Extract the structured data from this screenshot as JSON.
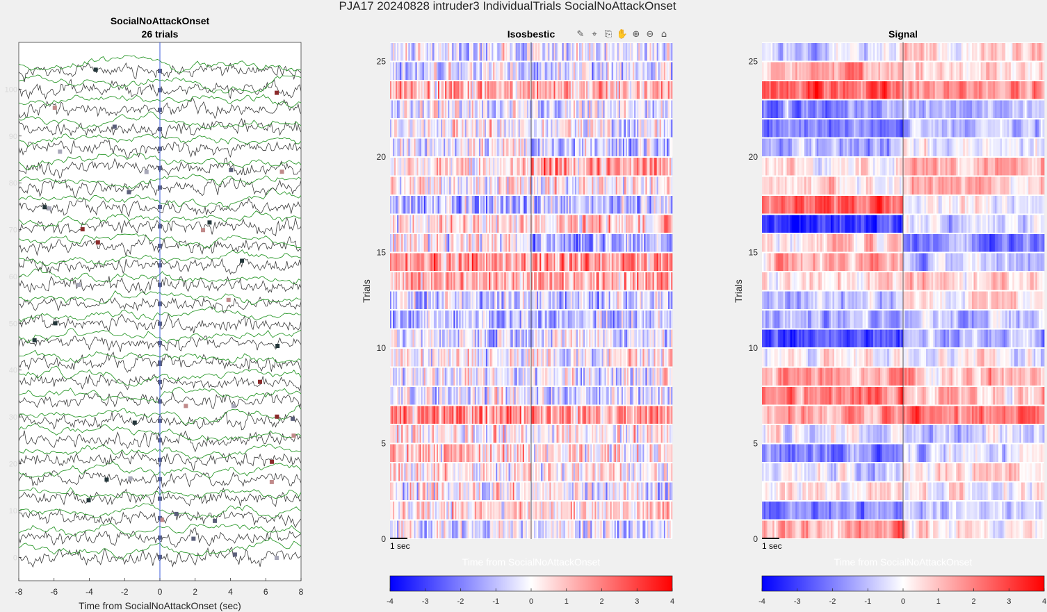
{
  "figure": {
    "suptitle": "PJA17 20240828  intruder3 IndividualTrials SocialNoAttackOnset"
  },
  "toolbar": {
    "icons": [
      "brush-icon",
      "data-tip-icon",
      "export-icon",
      "pan-icon",
      "zoom-in-icon",
      "zoom-out-icon",
      "home-icon"
    ],
    "glyphs": [
      "✎",
      "⌖",
      "⎘",
      "✋",
      "⊕",
      "⊖",
      "⌂"
    ]
  },
  "chart_data": [
    {
      "type": "line",
      "title": "SocialNoAttackOnset",
      "subtitle": "26 trials",
      "xlabel": "Time from SocialNoAttackOnset (sec)",
      "ylabel": "",
      "xlim": [
        -8,
        8
      ],
      "ylim": [
        -5,
        110
      ],
      "xticks": [
        -8,
        -6,
        -4,
        -2,
        0,
        2,
        4,
        6,
        8
      ],
      "yticks": [
        0,
        10,
        20,
        30,
        40,
        50,
        60,
        70,
        80,
        90,
        100
      ],
      "yticklabels": [
        "0",
        "10",
        "20",
        "30",
        "40",
        "50",
        "60",
        "70",
        "80",
        "90",
        "100"
      ],
      "n_trials": 26,
      "event_line_x": 0,
      "series": [
        {
          "color": "#3a3a3a"
        },
        {
          "color": "#2e9a2e"
        }
      ],
      "event_line_color": "#3b5bdb",
      "marker_colors": [
        "#5b5f7a",
        "#a7a7b8",
        "#8b2a2a",
        "#c08a8a",
        "#23363a"
      ]
    },
    {
      "type": "heatmap",
      "title": "Isosbestic",
      "xlabel": "Time from SocialNoAttackOnset",
      "ylabel": "Trials",
      "n_trials": 26,
      "xlim": [
        -8,
        8
      ],
      "yticks": [
        0,
        5,
        10,
        15,
        20,
        25
      ],
      "yticklabels": [
        "0",
        "5",
        "10",
        "15",
        "20",
        "25"
      ],
      "scalebar": "1 sec",
      "event_line_x": 0,
      "colorbar": {
        "range": [
          -4,
          4
        ],
        "ticks": [
          "-4",
          "-3",
          "-2",
          "-1",
          "0",
          "1",
          "2",
          "3",
          "4"
        ],
        "colors": [
          "#0000ff",
          "#ffffff",
          "#ff0000"
        ]
      },
      "row_means": [
        -0.4,
        0.7,
        -0.1,
        0.3,
        0.5,
        0.1,
        1.6,
        -0.3,
        -0.2,
        0.0,
        -0.5,
        -1.0,
        -0.6,
        1.3,
        1.7,
        -0.6,
        0.6,
        -1.0,
        0.2,
        1.0,
        -0.5,
        -0.2,
        -0.3,
        1.2,
        -0.6,
        -0.5
      ],
      "row_halves": [
        [
          -0.4,
          -0.4
        ],
        [
          0.7,
          0.7
        ],
        [
          0.0,
          -0.3
        ],
        [
          0.3,
          0.3
        ],
        [
          0.8,
          0.2
        ],
        [
          0.1,
          0.1
        ],
        [
          1.6,
          1.6
        ],
        [
          -0.1,
          -0.5
        ],
        [
          -0.2,
          -0.2
        ],
        [
          0.0,
          0.0
        ],
        [
          -0.5,
          -0.5
        ],
        [
          -1.0,
          -1.0
        ],
        [
          -0.6,
          -0.6
        ],
        [
          1.3,
          1.3
        ],
        [
          1.7,
          1.7
        ],
        [
          0.2,
          -1.4
        ],
        [
          0.4,
          0.8
        ],
        [
          -1.0,
          -1.0
        ],
        [
          0.2,
          0.2
        ],
        [
          0.6,
          1.4
        ],
        [
          -0.2,
          -0.8
        ],
        [
          -0.2,
          -0.2
        ],
        [
          -0.3,
          -0.3
        ],
        [
          1.2,
          1.2
        ],
        [
          -0.6,
          -0.6
        ],
        [
          -0.5,
          -0.5
        ]
      ]
    },
    {
      "type": "heatmap",
      "title": "Signal",
      "xlabel": "Time from SocialNoAttackOnset",
      "ylabel": "Trials",
      "n_trials": 26,
      "xlim": [
        -8,
        8
      ],
      "yticks": [
        0,
        5,
        10,
        15,
        20,
        25
      ],
      "yticklabels": [
        "0",
        "5",
        "10",
        "15",
        "20",
        "25"
      ],
      "scalebar": "1 sec",
      "event_line_x": 0,
      "colorbar": {
        "range": [
          -4,
          4
        ],
        "ticks": [
          "-4",
          "-3",
          "-2",
          "-1",
          "0",
          "1",
          "2",
          "3",
          "4"
        ],
        "colors": [
          "#0000ff",
          "#ffffff",
          "#ff0000"
        ]
      },
      "row_halves": [
        [
          1.2,
          0.3
        ],
        [
          -1.8,
          -0.8
        ],
        [
          0.3,
          0.3
        ],
        [
          -0.3,
          0.5
        ],
        [
          -2.0,
          -0.8
        ],
        [
          -0.3,
          -1.0
        ],
        [
          1.5,
          2.2
        ],
        [
          2.0,
          1.0
        ],
        [
          1.5,
          1.0
        ],
        [
          0.3,
          0.0
        ],
        [
          -2.4,
          -1.0
        ],
        [
          -1.2,
          -0.8
        ],
        [
          -0.8,
          0.3
        ],
        [
          0.6,
          0.6
        ],
        [
          1.0,
          -1.0
        ],
        [
          0.8,
          -1.8
        ],
        [
          -3.2,
          -0.6
        ],
        [
          2.4,
          0.0
        ],
        [
          0.4,
          1.0
        ],
        [
          0.3,
          1.0
        ],
        [
          -1.2,
          -0.2
        ],
        [
          -2.0,
          -1.2
        ],
        [
          -1.8,
          -1.0
        ],
        [
          2.3,
          1.5
        ],
        [
          1.4,
          0.6
        ],
        [
          -0.4,
          0.8
        ]
      ]
    }
  ]
}
